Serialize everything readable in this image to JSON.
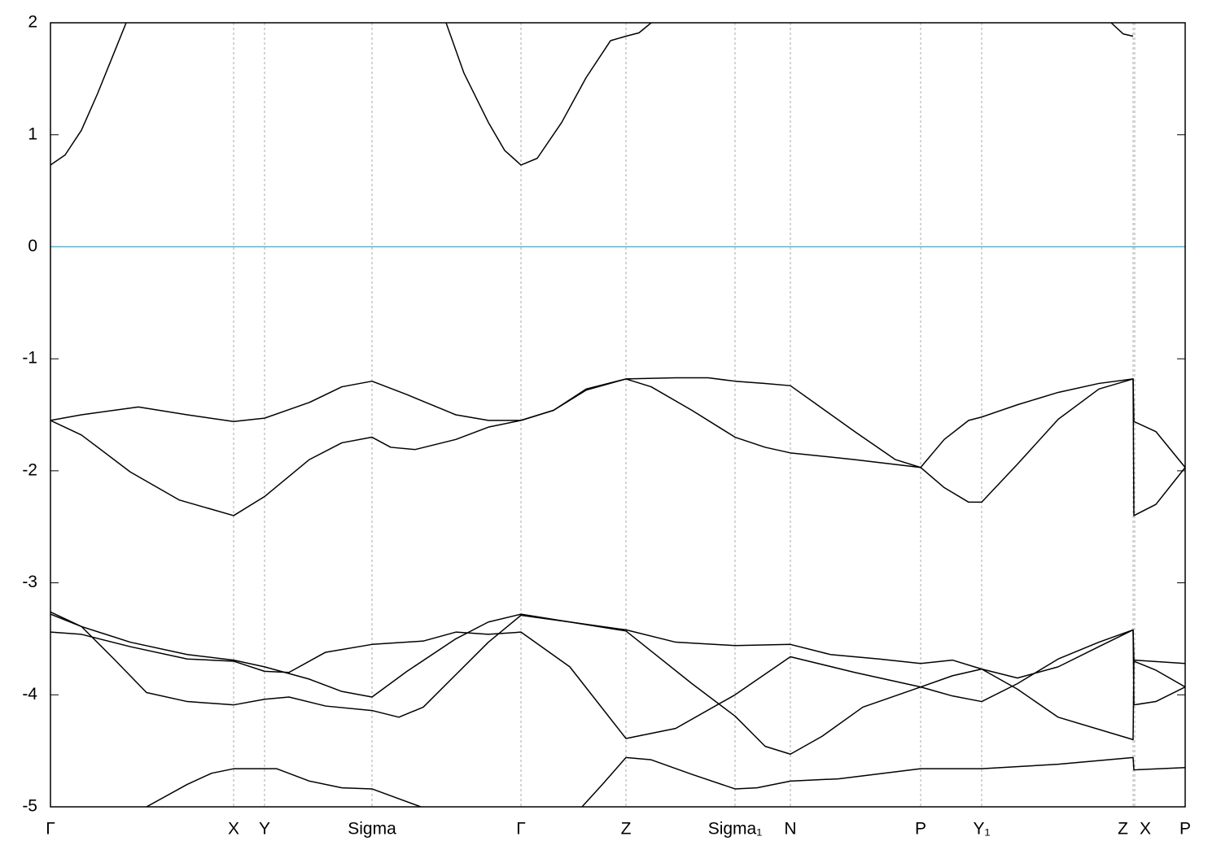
{
  "chart_data": {
    "type": "line",
    "xlim": [
      0,
      1394
    ],
    "ylim": [
      -5,
      2
    ],
    "xticks": [
      {
        "value": 0,
        "label": "Γ"
      },
      {
        "value": 225,
        "label": "X"
      },
      {
        "value": 263,
        "label": "Y"
      },
      {
        "value": 395,
        "label": "Sigma"
      },
      {
        "value": 578,
        "label": "Γ"
      },
      {
        "value": 707,
        "label": "Z"
      },
      {
        "value": 841,
        "label": "Sigma₁"
      },
      {
        "value": 909,
        "label": "N"
      },
      {
        "value": 1069,
        "label": "P"
      },
      {
        "value": 1144,
        "label": "Y₁"
      },
      {
        "value": 1330,
        "label": "Z"
      },
      {
        "value": 1332,
        "label": "X"
      },
      {
        "value": 1394,
        "label": "P"
      }
    ],
    "yticks": [
      2,
      1,
      0,
      -1,
      -2,
      -3,
      -4,
      -5
    ],
    "grid": "x",
    "reference_line": {
      "y": 0,
      "color": "#5ab4c8"
    },
    "series": [
      {
        "color": "#000000",
        "x": [
          0,
          18,
          38,
          58,
          78,
          93
        ],
        "values": [
          0.73,
          0.82,
          1.04,
          1.37,
          1.73,
          2
        ]
      },
      {
        "color": "#000000",
        "x": [
          486,
          508,
          538,
          558,
          578,
          598,
          628,
          658,
          688,
          707,
          723,
          738
        ],
        "values": [
          2,
          1.55,
          1.11,
          0.86,
          0.73,
          0.79,
          1.11,
          1.51,
          1.84,
          1.88,
          1.91,
          2
        ]
      },
      {
        "color": "#000000",
        "x": [
          1303,
          1318,
          1330
        ],
        "values": [
          2,
          1.9,
          1.88
        ]
      },
      {
        "color": "#000000",
        "x": [
          0,
          38,
          108,
          168,
          225,
          263,
          318,
          358,
          395,
          438,
          498,
          538,
          578,
          618,
          658,
          707,
          768,
          808,
          841,
          878,
          909,
          938,
          988,
          1038,
          1069,
          1098,
          1128,
          1144,
          1188,
          1238,
          1288,
          1330,
          1331,
          1358,
          1394
        ],
        "values": [
          -1.55,
          -1.5,
          -1.43,
          -1.5,
          -1.56,
          -1.53,
          -1.39,
          -1.25,
          -1.2,
          -1.32,
          -1.5,
          -1.55,
          -1.55,
          -1.46,
          -1.28,
          -1.18,
          -1.17,
          -1.17,
          -1.2,
          -1.22,
          -1.24,
          -1.39,
          -1.65,
          -1.9,
          -1.97,
          -1.72,
          -1.55,
          -1.52,
          -1.41,
          -1.3,
          -1.22,
          -1.18,
          -1.56,
          -1.65,
          -1.97
        ]
      },
      {
        "color": "#000000",
        "x": [
          0,
          38,
          98,
          158,
          225,
          263,
          318,
          358,
          395,
          418,
          448,
          498,
          538,
          578,
          618,
          658,
          707,
          738,
          788,
          841,
          878,
          909,
          988,
          1069,
          1098,
          1128,
          1144,
          1188,
          1238,
          1288,
          1330,
          1331,
          1358,
          1394
        ],
        "values": [
          -1.55,
          -1.68,
          -2.01,
          -2.26,
          -2.4,
          -2.23,
          -1.9,
          -1.75,
          -1.7,
          -1.79,
          -1.81,
          -1.72,
          -1.61,
          -1.55,
          -1.46,
          -1.27,
          -1.18,
          -1.25,
          -1.46,
          -1.7,
          -1.79,
          -1.84,
          -1.9,
          -1.97,
          -2.15,
          -2.28,
          -2.28,
          -1.94,
          -1.54,
          -1.27,
          -1.18,
          -2.4,
          -2.3,
          -1.97
        ]
      },
      {
        "color": "#000000",
        "x": [
          0,
          38,
          98,
          168,
          225,
          263,
          318,
          358,
          395,
          438,
          498,
          538,
          578,
          638,
          707,
          768,
          841,
          909,
          958,
          1018,
          1069,
          1108,
          1144,
          1188,
          1238,
          1288,
          1330,
          1331,
          1394
        ],
        "values": [
          -3.28,
          -3.39,
          -3.53,
          -3.64,
          -3.69,
          -3.75,
          -3.86,
          -3.97,
          -4.02,
          -3.79,
          -3.5,
          -3.35,
          -3.28,
          -3.35,
          -3.42,
          -3.53,
          -3.56,
          -3.55,
          -3.64,
          -3.68,
          -3.72,
          -3.69,
          -3.77,
          -3.85,
          -3.75,
          -3.57,
          -3.42,
          -3.69,
          -3.72
        ]
      },
      {
        "color": "#000000",
        "x": [
          0,
          38,
          78,
          118,
          168,
          225,
          263,
          293,
          338,
          395,
          428,
          458,
          498,
          538,
          578,
          638,
          707,
          738,
          788,
          841,
          878,
          909,
          948,
          998,
          1069,
          1108,
          1144,
          1188,
          1238,
          1288,
          1330,
          1331,
          1358,
          1394
        ],
        "values": [
          -3.26,
          -3.39,
          -3.68,
          -3.98,
          -4.06,
          -4.09,
          -4.04,
          -4.02,
          -4.1,
          -4.14,
          -4.2,
          -4.11,
          -3.82,
          -3.53,
          -3.29,
          -3.35,
          -3.43,
          -3.61,
          -3.9,
          -4.19,
          -4.46,
          -4.53,
          -4.37,
          -4.11,
          -3.93,
          -4.01,
          -4.06,
          -3.9,
          -3.68,
          -3.53,
          -3.42,
          -4.09,
          -4.06,
          -3.93
        ]
      },
      {
        "color": "#000000",
        "x": [
          0,
          38,
          98,
          168,
          225,
          263,
          293,
          338,
          395,
          458,
          498,
          538,
          578,
          638,
          707,
          768,
          841,
          909,
          988,
          1069,
          1108,
          1144,
          1188,
          1238,
          1330,
          1331,
          1358,
          1394
        ],
        "values": [
          -3.44,
          -3.46,
          -3.57,
          -3.68,
          -3.7,
          -3.79,
          -3.8,
          -3.62,
          -3.55,
          -3.52,
          -3.44,
          -3.46,
          -3.44,
          -3.75,
          -4.39,
          -4.3,
          -4.0,
          -3.66,
          -3.8,
          -3.93,
          -3.83,
          -3.77,
          -3.95,
          -4.2,
          -4.4,
          -3.7,
          -3.78,
          -3.93
        ]
      },
      {
        "color": "#000000",
        "x": [
          118,
          168,
          198,
          225,
          278,
          318,
          358,
          395,
          455
        ],
        "values": [
          -5,
          -4.8,
          -4.7,
          -4.66,
          -4.66,
          -4.77,
          -4.83,
          -4.84,
          -5
        ]
      },
      {
        "color": "#000000",
        "x": [
          653,
          678,
          707,
          738,
          788,
          841,
          868,
          909,
          968,
          1069,
          1144,
          1238,
          1330,
          1331,
          1394
        ],
        "values": [
          -5,
          -4.8,
          -4.56,
          -4.58,
          -4.71,
          -4.84,
          -4.83,
          -4.77,
          -4.75,
          -4.66,
          -4.66,
          -4.62,
          -4.56,
          -4.67,
          -4.65
        ]
      }
    ]
  }
}
